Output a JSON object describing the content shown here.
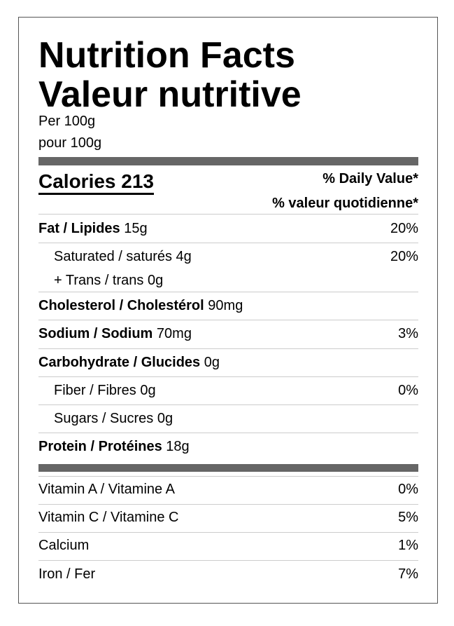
{
  "header": {
    "title_en": "Nutrition Facts",
    "title_fr": "Valeur nutritive",
    "serving_en": "Per 100g",
    "serving_fr": "pour 100g"
  },
  "calories": {
    "label": "Calories 213",
    "dv_en": "% Daily Value*",
    "dv_fr": "% valeur quotidienne*"
  },
  "nutrients": [
    {
      "label": "Fat / Lipides",
      "amount": "15g",
      "dv": "20%",
      "sub": [
        {
          "label": "Saturated / saturés 4g",
          "dv": "20%"
        },
        {
          "label": "+ Trans / trans 0g"
        }
      ]
    },
    {
      "label": "Cholesterol / Cholestérol",
      "amount": "90mg"
    },
    {
      "label": "Sodium / Sodium",
      "amount": "70mg",
      "dv": "3%"
    },
    {
      "label": "Carbohydrate / Glucides",
      "amount": "0g",
      "sub": [
        {
          "label": "Fiber / Fibres 0g",
          "dv": "0%"
        },
        {
          "label": "Sugars / Sucres 0g"
        }
      ]
    },
    {
      "label": "Protein / Protéines",
      "amount": "18g"
    }
  ],
  "vitamins": [
    {
      "label": "Vitamin A / Vitamine A",
      "dv": "0%"
    },
    {
      "label": "Vitamin C / Vitamine C",
      "dv": "5%"
    },
    {
      "label": "Calcium",
      "dv": "1%"
    },
    {
      "label": "Iron / Fer",
      "dv": "7%"
    }
  ]
}
